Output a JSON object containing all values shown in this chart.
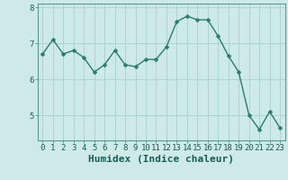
{
  "x": [
    0,
    1,
    2,
    3,
    4,
    5,
    6,
    7,
    8,
    9,
    10,
    11,
    12,
    13,
    14,
    15,
    16,
    17,
    18,
    19,
    20,
    21,
    22,
    23
  ],
  "y": [
    6.7,
    7.1,
    6.7,
    6.8,
    6.6,
    6.2,
    6.4,
    6.8,
    6.4,
    6.35,
    6.55,
    6.55,
    6.9,
    7.6,
    7.75,
    7.65,
    7.65,
    7.2,
    6.65,
    6.2,
    5.0,
    4.6,
    5.1,
    4.65
  ],
  "line_color": "#2d7a6e",
  "marker": "D",
  "marker_size": 2.5,
  "bg_color": "#ceeae8",
  "grid_color": "#aed4d2",
  "xlabel": "Humidex (Indice chaleur)",
  "xlabel_fontsize": 8,
  "tick_fontsize": 6.5,
  "ylim": [
    4.3,
    8.1
  ],
  "yticks": [
    5,
    6,
    7,
    8
  ],
  "xlim": [
    -0.5,
    23.5
  ],
  "spine_color": "#5a9a90",
  "linewidth": 1.0
}
